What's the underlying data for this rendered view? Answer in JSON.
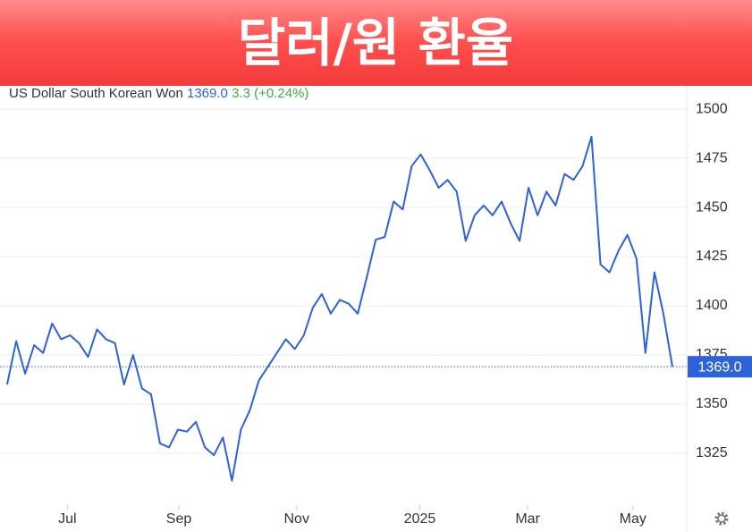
{
  "banner": {
    "title": "달러/원 환율"
  },
  "chart_data": {
    "type": "line",
    "price_label": "1369.0",
    "change_label": "3.3 (+0.24%)",
    "x": [
      0,
      1,
      2,
      3,
      4,
      5,
      6,
      7,
      8,
      9,
      10,
      11,
      12,
      13,
      14,
      15,
      16,
      17,
      18,
      19,
      20,
      21,
      22,
      23,
      24,
      25,
      26,
      27,
      28,
      29,
      30,
      31,
      32,
      33,
      34,
      35,
      36,
      37,
      38,
      39,
      40,
      41,
      42,
      43,
      44,
      45,
      46,
      47,
      48,
      49,
      50,
      51,
      52,
      53,
      54,
      55,
      56,
      57,
      58,
      59,
      60,
      61,
      62,
      63,
      64,
      65,
      66,
      67,
      68,
      69,
      70,
      71,
      72,
      73,
      74
    ],
    "series": [
      {
        "name": "US Dollar South Korean Won",
        "color": "#2e62d9",
        "values": [
          1360,
          1382,
          1365.5,
          1380,
          1376,
          1391,
          1383,
          1385,
          1381,
          1374,
          1388,
          1383,
          1381,
          1360,
          1375,
          1358,
          1355,
          1330,
          1328,
          1337,
          1336,
          1341,
          1328,
          1324,
          1333,
          1311,
          1337,
          1347,
          1362,
          1369,
          1376,
          1383,
          1378,
          1385,
          1399,
          1406,
          1396,
          1403,
          1401,
          1396,
          1414.5,
          1433.6,
          1435,
          1453,
          1449,
          1471,
          1477,
          1469,
          1460,
          1464,
          1458,
          1433,
          1446,
          1451,
          1446,
          1453,
          1442,
          1433,
          1460,
          1446,
          1458,
          1451,
          1467,
          1464,
          1471,
          1486,
          1421,
          1417,
          1428,
          1436,
          1424,
          1376,
          1417,
          1396,
          1369
        ]
      }
    ],
    "xlim": [
      0,
      74
    ],
    "xticks": [
      {
        "value": 6.7,
        "label": "Jul"
      },
      {
        "value": 19.1,
        "label": "Sep"
      },
      {
        "value": 32.2,
        "label": "Nov"
      },
      {
        "value": 45.9,
        "label": "2025"
      },
      {
        "value": 57.9,
        "label": "Mar"
      },
      {
        "value": 69.6,
        "label": "May"
      }
    ],
    "ylim": [
      1298.6,
      1511.4
    ],
    "yticks": [
      1325,
      1350,
      1375,
      1400,
      1425,
      1450,
      1475,
      1500
    ],
    "grid": true
  }
}
